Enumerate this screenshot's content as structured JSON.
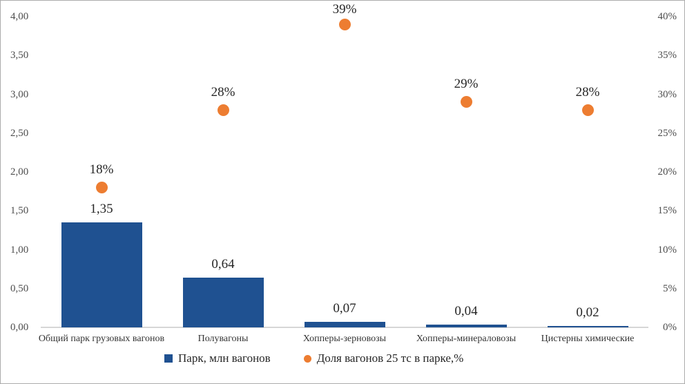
{
  "frame": {
    "background": "#FFFFFF",
    "border_color": "#ABABAB"
  },
  "colors": {
    "bar": "#1F5191",
    "dot": "#ED7D31",
    "axis_text": "#4D4D4D",
    "data_label_text": "#262626",
    "category_text": "#333333",
    "baseline": "#D6D6D6"
  },
  "chart_data": {
    "type": "bar",
    "subtype": "combo-bar-scatter",
    "categories": [
      "Общий парк грузовых вагонов",
      "Полувагоны",
      "Хопперы-зерновозы",
      "Хопперы-минераловозы",
      "Цистерны химические"
    ],
    "series": [
      {
        "name": "Парк, млн вагонов",
        "type": "bar",
        "axis": "left",
        "values": [
          1.35,
          0.64,
          0.07,
          0.04,
          0.02
        ],
        "data_labels": [
          "1,35",
          "0,64",
          "0,07",
          "0,04",
          "0,02"
        ],
        "color": "#1F5191"
      },
      {
        "name": "Доля вагонов 25 тс в парке,%",
        "type": "scatter",
        "axis": "right",
        "values": [
          18,
          28,
          39,
          29,
          28
        ],
        "data_labels": [
          "18%",
          "28%",
          "39%",
          "29%",
          "28%"
        ],
        "color": "#ED7D31"
      }
    ],
    "left_axis": {
      "min": 0,
      "max": 4,
      "tick_labels": [
        "4,00",
        "3,50",
        "3,00",
        "2,50",
        "2,00",
        "1,50",
        "1,00",
        "0,50",
        "0,00"
      ]
    },
    "right_axis": {
      "min": 0,
      "max": 40,
      "tick_labels": [
        "40%",
        "35%",
        "30%",
        "25%",
        "20%",
        "15%",
        "10%",
        "5%",
        "0%"
      ]
    },
    "grid": false,
    "title": "",
    "legend_position": "bottom"
  },
  "legend": {
    "items": [
      {
        "label": "Парк, млн вагонов",
        "marker": "square",
        "color": "#1F5191"
      },
      {
        "label": "Доля вагонов 25 тс в парке,%",
        "marker": "circle",
        "color": "#ED7D31"
      }
    ]
  }
}
